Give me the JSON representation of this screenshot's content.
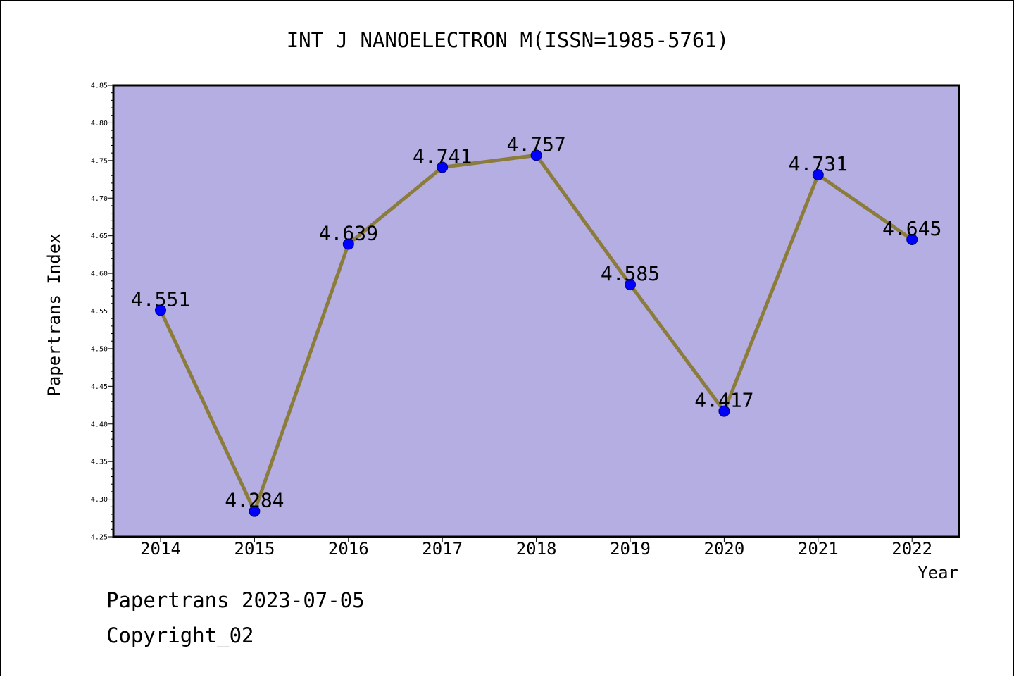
{
  "chart_data": {
    "type": "line",
    "title": "INT J NANOELECTRON M(ISSN=1985-5761)",
    "xlabel": "Year",
    "ylabel": "Papertrans Index",
    "categories": [
      "2014",
      "2015",
      "2016",
      "2017",
      "2018",
      "2019",
      "2020",
      "2021",
      "2022"
    ],
    "values": [
      4.551,
      4.284,
      4.639,
      4.741,
      4.757,
      4.585,
      4.417,
      4.731,
      4.645
    ],
    "data_labels": [
      "4.551",
      "4.284",
      "4.639",
      "4.741",
      "4.757",
      "4.585",
      "4.417",
      "4.731",
      "4.645"
    ],
    "ylim": [
      4.25,
      4.85
    ],
    "yticks": [
      "4.25",
      "4.30",
      "4.35",
      "4.40",
      "4.45",
      "4.50",
      "4.55",
      "4.60",
      "4.65",
      "4.70",
      "4.75",
      "4.80",
      "4.85"
    ],
    "grid": false,
    "colors": {
      "plot_background": "#b4aee2",
      "line": "#8b7c3c",
      "marker": "#0000ff"
    }
  },
  "footer": {
    "line1": "Papertrans 2023-07-05",
    "line2": "Copyright_02"
  }
}
